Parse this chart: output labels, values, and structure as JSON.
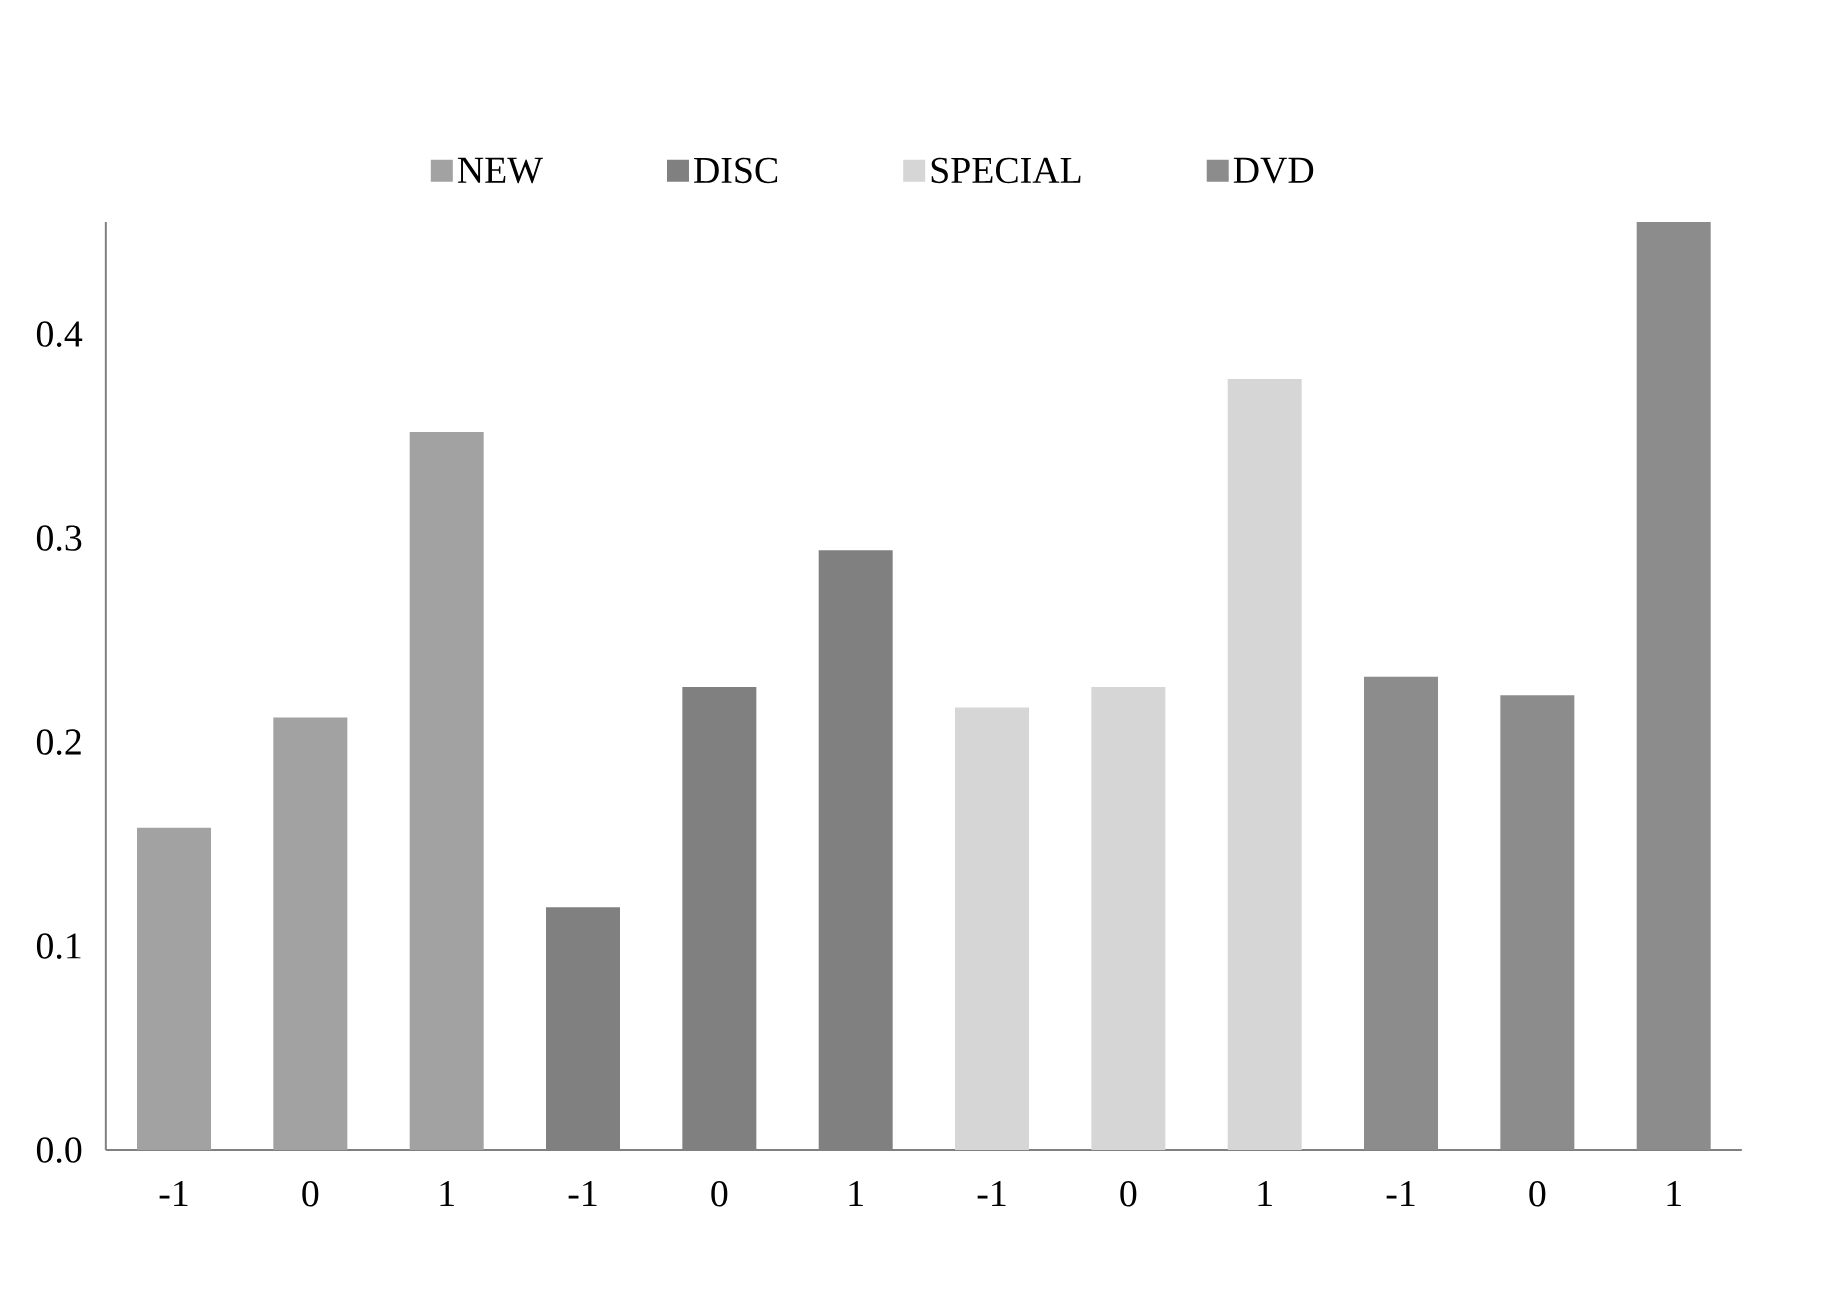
{
  "chart_data": {
    "type": "bar",
    "categories": [
      "-1",
      "0",
      "1",
      "-1",
      "0",
      "1",
      "-1",
      "0",
      "1",
      "-1",
      "0",
      "1"
    ],
    "series": [
      {
        "name": "NEW",
        "color": "#a2a2a2",
        "values": [
          0.158,
          0.212,
          0.352,
          null,
          null,
          null,
          null,
          null,
          null,
          null,
          null,
          null
        ]
      },
      {
        "name": "DISC",
        "color": "#808080",
        "values": [
          null,
          null,
          null,
          0.119,
          0.227,
          0.294,
          null,
          null,
          null,
          null,
          null,
          null
        ]
      },
      {
        "name": "SPECIAL",
        "color": "#d6d6d6",
        "values": [
          null,
          null,
          null,
          null,
          null,
          null,
          0.217,
          0.227,
          0.378,
          null,
          null,
          null
        ]
      },
      {
        "name": "DVD",
        "color": "#8c8c8c",
        "values": [
          null,
          null,
          null,
          null,
          null,
          null,
          null,
          null,
          null,
          0.232,
          0.223,
          0.455
        ]
      }
    ],
    "ylim": [
      0,
      0.455
    ],
    "yticks": [
      {
        "value": 0,
        "label": "0.0"
      },
      0.1,
      0.2,
      0.3,
      0.4
    ],
    "legend": "top"
  }
}
